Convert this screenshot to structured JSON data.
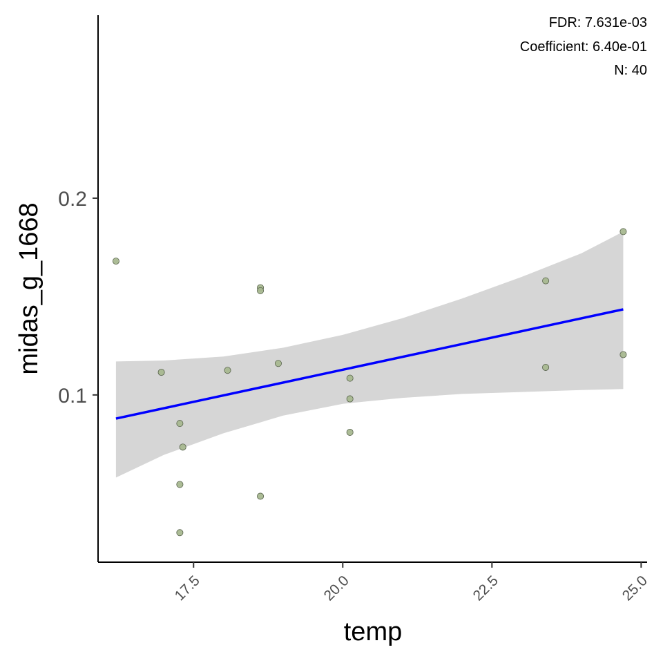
{
  "chart_data": {
    "type": "scatter",
    "xlabel": "temp",
    "ylabel": "midas_g_1668",
    "xlim": [
      15.9,
      25.1
    ],
    "ylim": [
      0.015,
      0.293
    ],
    "x_ticks": [
      17.5,
      20.0,
      22.5,
      25.0
    ],
    "x_tick_labels": [
      "17.5",
      "20.0",
      "22.5",
      "25.0"
    ],
    "y_ticks": [
      0.1,
      0.2
    ],
    "y_tick_labels": [
      "0.1",
      "0.2"
    ],
    "grid": false,
    "annotations": [
      "FDR: 7.631e-03",
      "Coefficient: 6.40e-01",
      "N: 40"
    ],
    "points": [
      {
        "x": 16.2,
        "y": 0.168
      },
      {
        "x": 16.96,
        "y": 0.1115
      },
      {
        "x": 17.27,
        "y": 0.0855
      },
      {
        "x": 17.32,
        "y": 0.0735
      },
      {
        "x": 17.27,
        "y": 0.0545
      },
      {
        "x": 17.27,
        "y": 0.03
      },
      {
        "x": 18.07,
        "y": 0.1125
      },
      {
        "x": 18.62,
        "y": 0.1545
      },
      {
        "x": 18.62,
        "y": 0.153
      },
      {
        "x": 18.62,
        "y": 0.0485
      },
      {
        "x": 18.92,
        "y": 0.116
      },
      {
        "x": 20.12,
        "y": 0.1085
      },
      {
        "x": 20.12,
        "y": 0.098
      },
      {
        "x": 20.12,
        "y": 0.081
      },
      {
        "x": 23.4,
        "y": 0.158
      },
      {
        "x": 23.4,
        "y": 0.114
      },
      {
        "x": 24.7,
        "y": 0.183
      },
      {
        "x": 24.7,
        "y": 0.1205
      }
    ],
    "fit_line": {
      "x": [
        16.2,
        24.7
      ],
      "y": [
        0.088,
        0.1435
      ]
    },
    "confidence_band": {
      "x": [
        16.2,
        17.0,
        18.0,
        19.0,
        20.0,
        21.0,
        22.0,
        23.0,
        24.0,
        24.7
      ],
      "lower": [
        0.058,
        0.0695,
        0.0805,
        0.0895,
        0.0955,
        0.0985,
        0.1005,
        0.1015,
        0.1025,
        0.103
      ],
      "upper": [
        0.117,
        0.1175,
        0.1195,
        0.124,
        0.1305,
        0.139,
        0.149,
        0.16,
        0.172,
        0.183
      ]
    },
    "colors": {
      "points_fill": "#a8b890",
      "points_stroke": "#55604a",
      "fit_line": "#0000ff",
      "band": "#d6d6d6",
      "axis": "#000000"
    }
  }
}
